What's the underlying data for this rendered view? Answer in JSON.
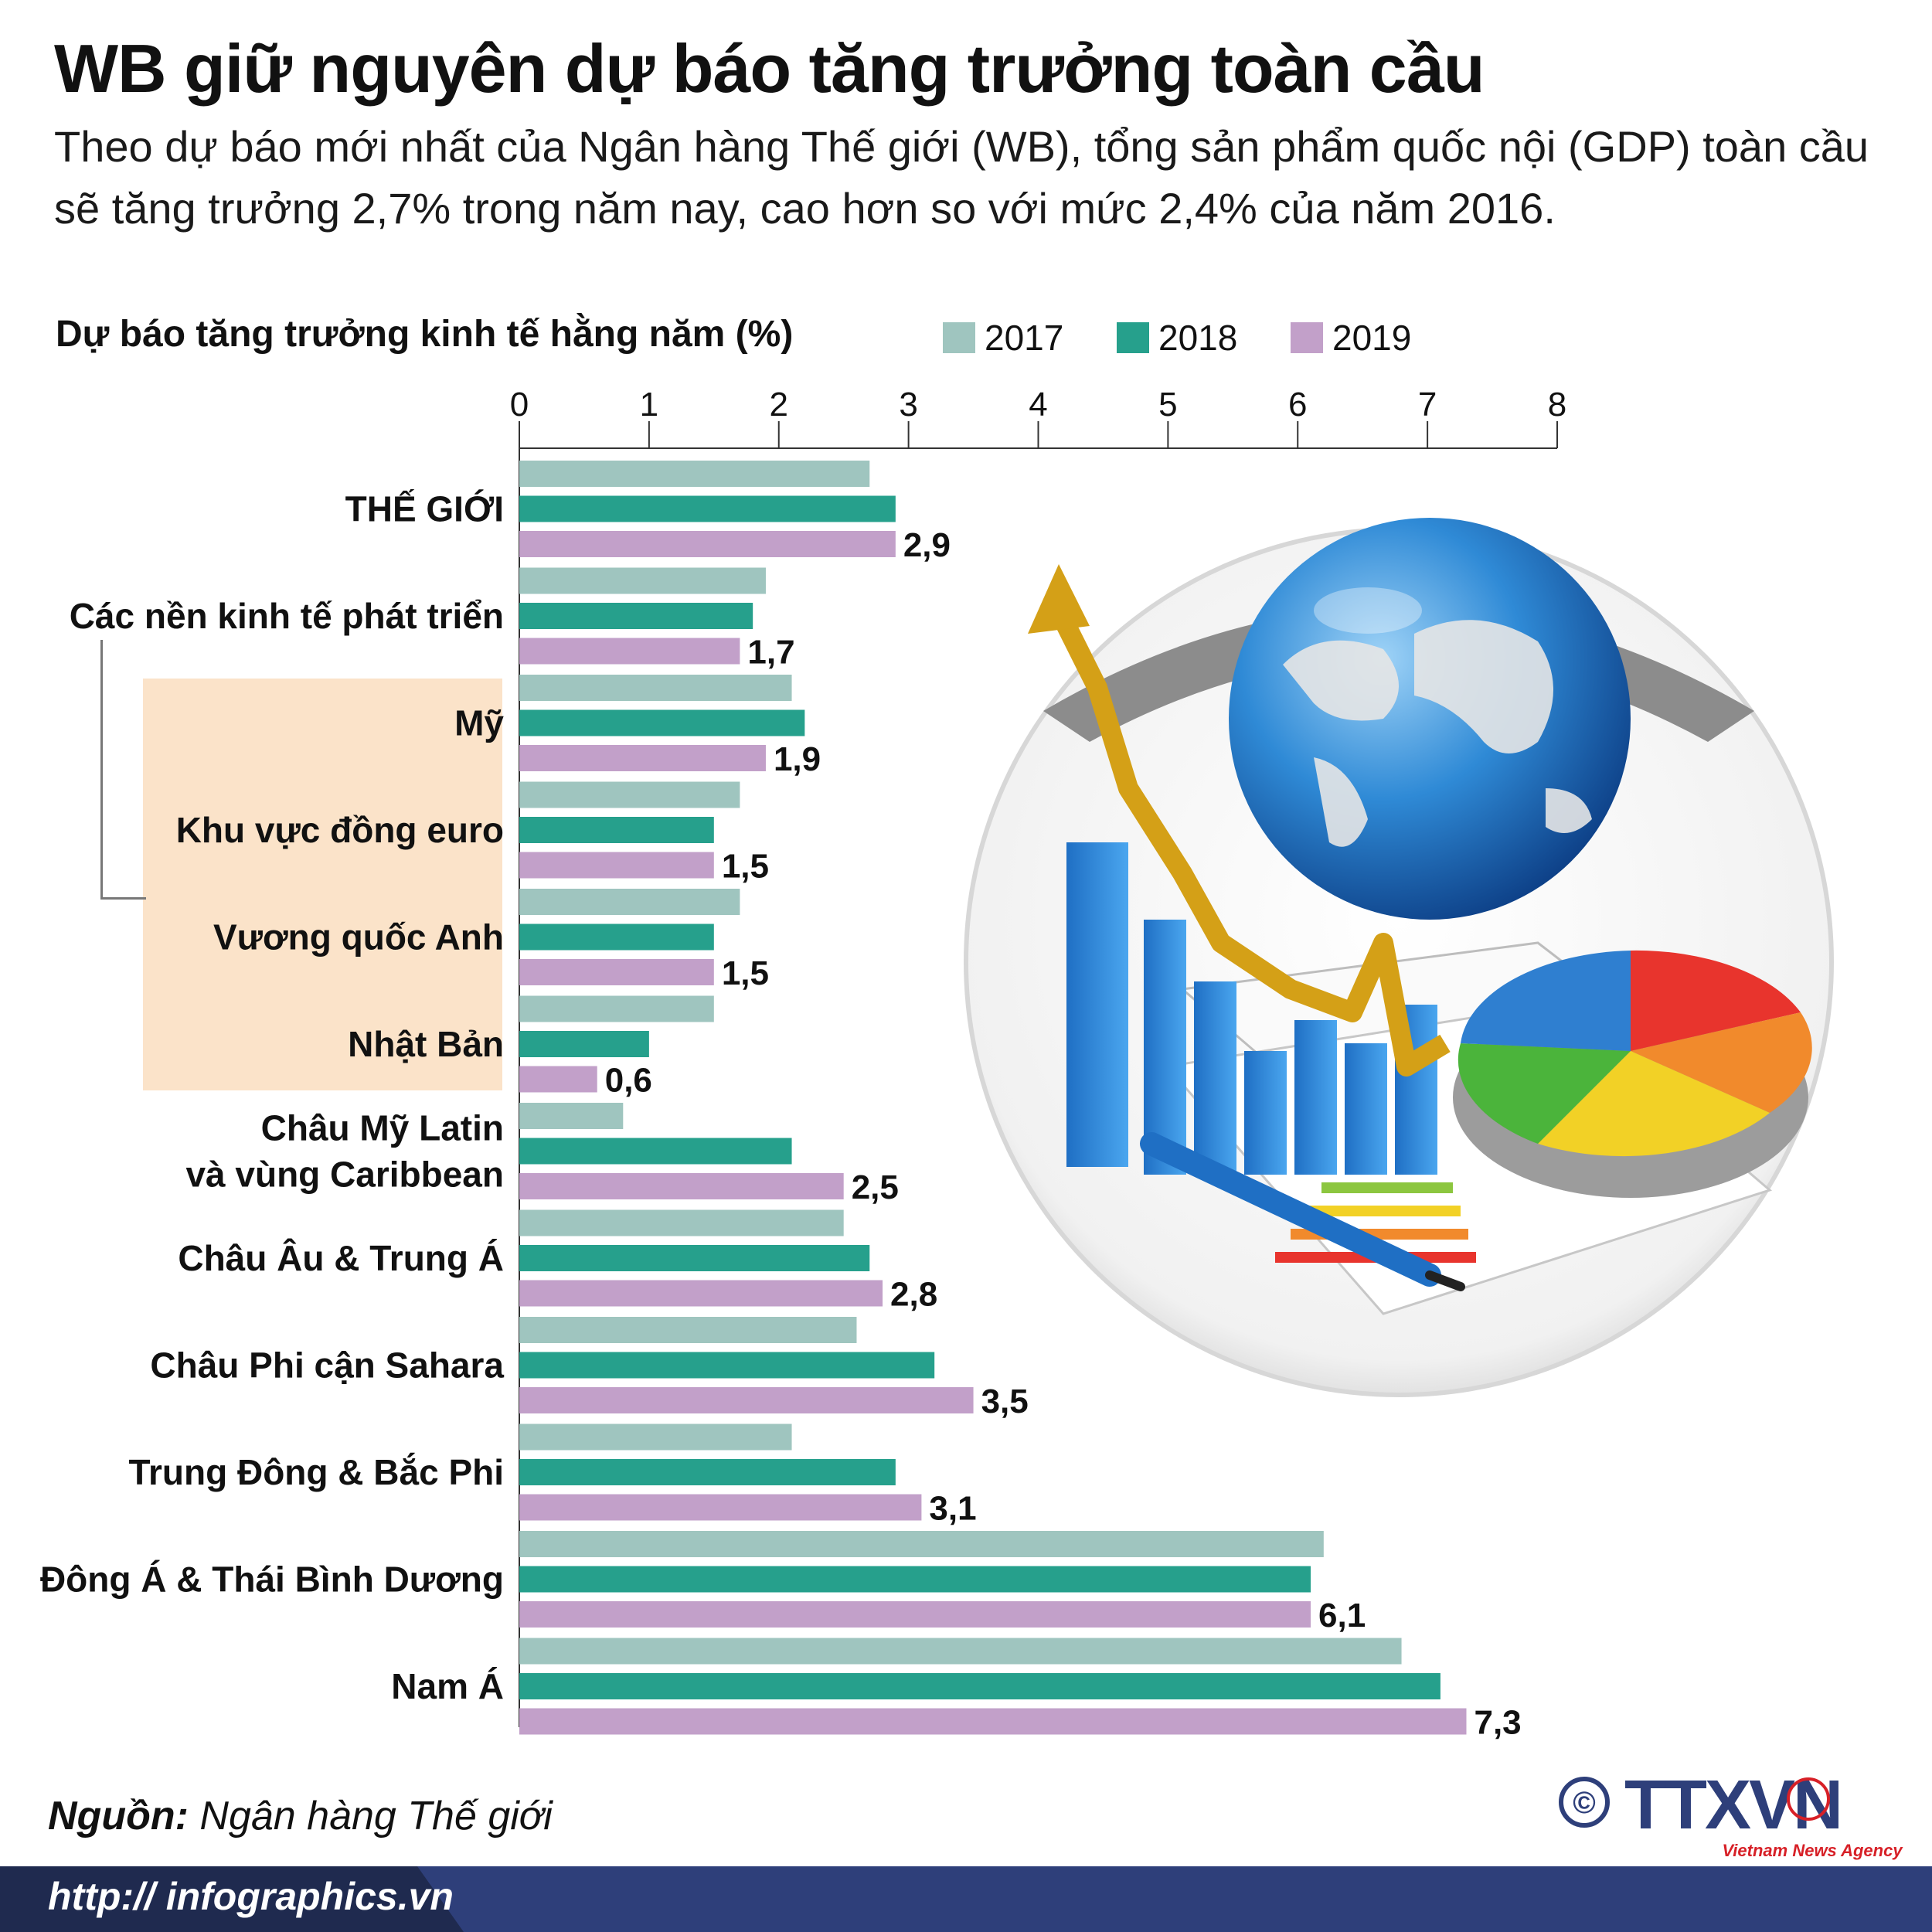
{
  "header": {
    "title": "WB giữ nguyên dự báo tăng trưởng toàn cầu",
    "subtitle": "Theo dự báo mới nhất của Ngân hàng Thế giới (WB), tổng sản phẩm quốc nội (GDP) toàn cầu sẽ tăng trưởng 2,7% trong năm nay, cao hơn so với mức 2,4% của năm 2016."
  },
  "colors": {
    "s2017": "#9fc5bf",
    "s2018": "#26a08c",
    "s2019": "#c2a0c9",
    "text": "#111111"
  },
  "chart_data": {
    "type": "bar",
    "orientation": "horizontal",
    "title": "Dự báo tăng trưởng kinh tế hằng năm (%)",
    "xlim": [
      0,
      8
    ],
    "xticks": [
      "0",
      "1",
      "2",
      "3",
      "4",
      "5",
      "6",
      "7",
      "8"
    ],
    "categories": [
      "THẾ GIỚI",
      "Các nền kinh tế phát triển",
      "Mỹ",
      "Khu vực đồng euro",
      "Vương quốc Anh",
      "Nhật Bản",
      "Châu Mỹ Latin\nvà vùng Caribbean",
      "Châu Âu & Trung Á",
      "Châu Phi cận Sahara",
      "Trung Đông & Bắc Phi",
      "Đông Á & Thái Bình Dương",
      "Nam Á"
    ],
    "series": [
      {
        "name": "2017",
        "values": [
          2.7,
          1.9,
          2.1,
          1.7,
          1.7,
          1.5,
          0.8,
          2.5,
          2.6,
          2.1,
          6.2,
          6.8
        ]
      },
      {
        "name": "2018",
        "values": [
          2.9,
          1.8,
          2.2,
          1.5,
          1.5,
          1.0,
          2.1,
          2.7,
          3.2,
          2.9,
          6.1,
          7.1
        ]
      },
      {
        "name": "2019",
        "values": [
          2.9,
          1.7,
          1.9,
          1.5,
          1.5,
          0.6,
          2.5,
          2.8,
          3.5,
          3.1,
          6.1,
          7.3
        ]
      }
    ],
    "data_labels": [
      "2,9",
      "1,7",
      "1,9",
      "1,5",
      "1,5",
      "0,6",
      "2,5",
      "2,8",
      "3,5",
      "3,1",
      "6,1",
      "7,3"
    ],
    "grid": false,
    "legend": "top"
  },
  "footer": {
    "source_label": "Nguồn:",
    "source_value": "Ngân hàng Thế giới",
    "url": "http:// infographics.vn",
    "logo_copyright": "©",
    "logo_text": "TTXVN",
    "logo_sub": "Vietnam News Agency"
  }
}
